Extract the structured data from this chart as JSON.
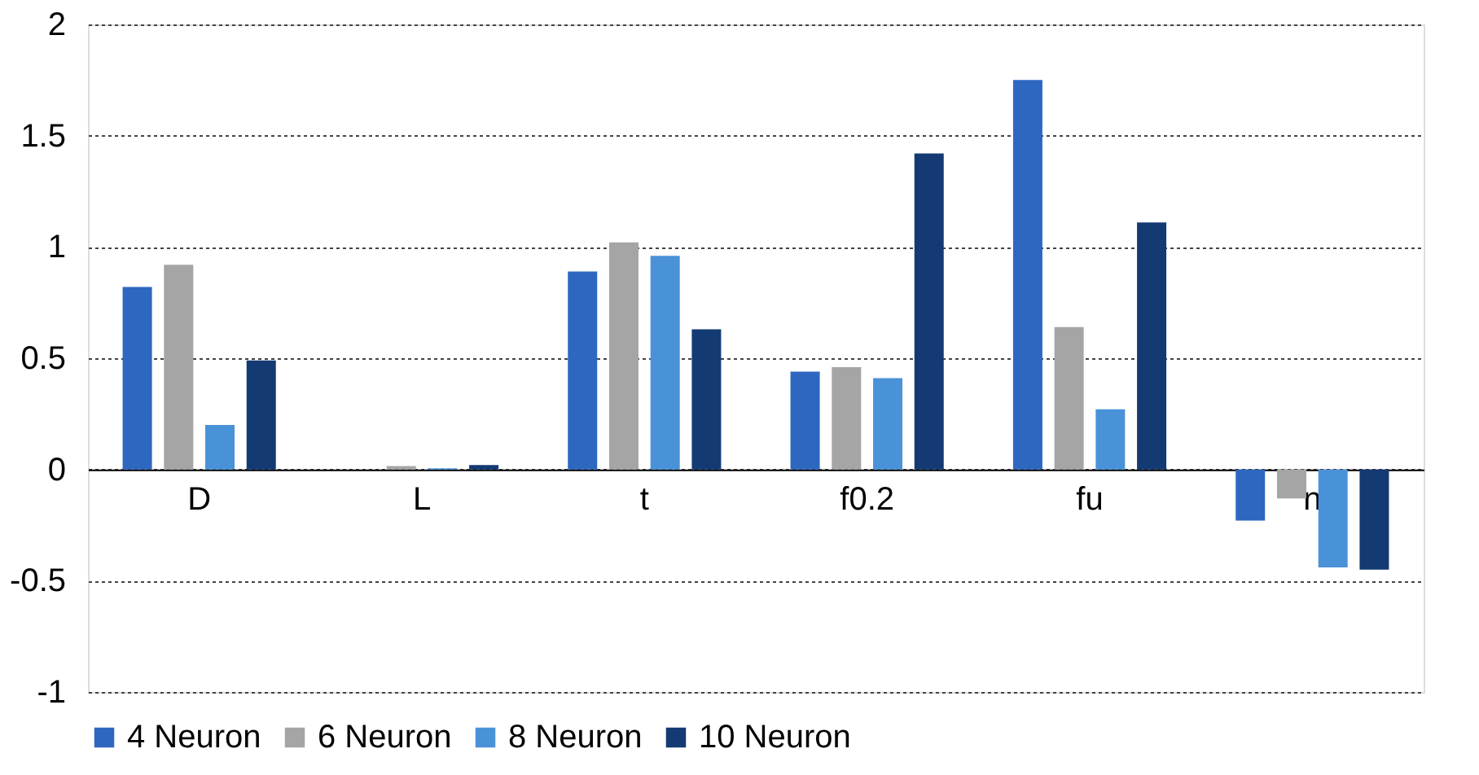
{
  "chart_data": {
    "type": "bar",
    "categories": [
      "D",
      "L",
      "t",
      "f0.2",
      "fu",
      "n"
    ],
    "series": [
      {
        "name": "4 Neuron",
        "color": "#2e67c0",
        "values": [
          0.82,
          0,
          0.89,
          0.44,
          1.75,
          -0.23
        ]
      },
      {
        "name": "6 Neuron",
        "color": "#a5a5a5",
        "values": [
          0.92,
          0.015,
          1.02,
          0.46,
          0.64,
          -0.13
        ]
      },
      {
        "name": "8 Neuron",
        "color": "#4a92d8",
        "values": [
          0.2,
          0.005,
          0.96,
          0.41,
          0.27,
          -0.44
        ]
      },
      {
        "name": "10 Neuron",
        "color": "#143a74",
        "values": [
          0.49,
          0.02,
          0.63,
          1.42,
          1.11,
          -0.45
        ]
      }
    ],
    "ylim": [
      -1,
      2
    ],
    "yticks": [
      -1,
      -0.5,
      0,
      0.5,
      1,
      1.5,
      2
    ],
    "grid": "y",
    "legend": "bottom"
  }
}
